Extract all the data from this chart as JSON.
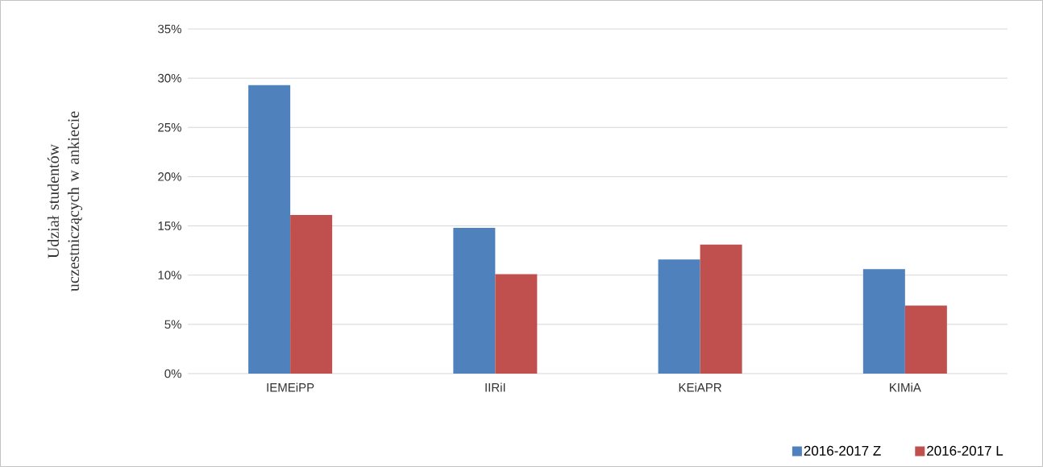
{
  "chart_data": {
    "type": "bar",
    "ylabel": "Udział studentów uczestniczących w ankiecie",
    "categories": [
      "IEMEiPP",
      "IIRiI",
      "KEiAPR",
      "KIMiA"
    ],
    "series": [
      {
        "name": "2016-2017 Z",
        "color": "#4f81bd",
        "values": [
          29.3,
          14.8,
          11.6,
          10.6
        ]
      },
      {
        "name": "2016-2017 L",
        "color": "#c0504d",
        "values": [
          16.1,
          10.1,
          13.1,
          6.9
        ]
      }
    ],
    "ylim": [
      0,
      35
    ],
    "yticks": [
      {
        "value": 0,
        "label": "0%"
      },
      {
        "value": 5,
        "label": "5%"
      },
      {
        "value": 10,
        "label": "10%"
      },
      {
        "value": 15,
        "label": "15%"
      },
      {
        "value": 20,
        "label": "20%"
      },
      {
        "value": 25,
        "label": "25%"
      },
      {
        "value": 30,
        "label": "30%"
      },
      {
        "value": 35,
        "label": "35%"
      }
    ],
    "grid": "y",
    "legend": "bottom right"
  }
}
